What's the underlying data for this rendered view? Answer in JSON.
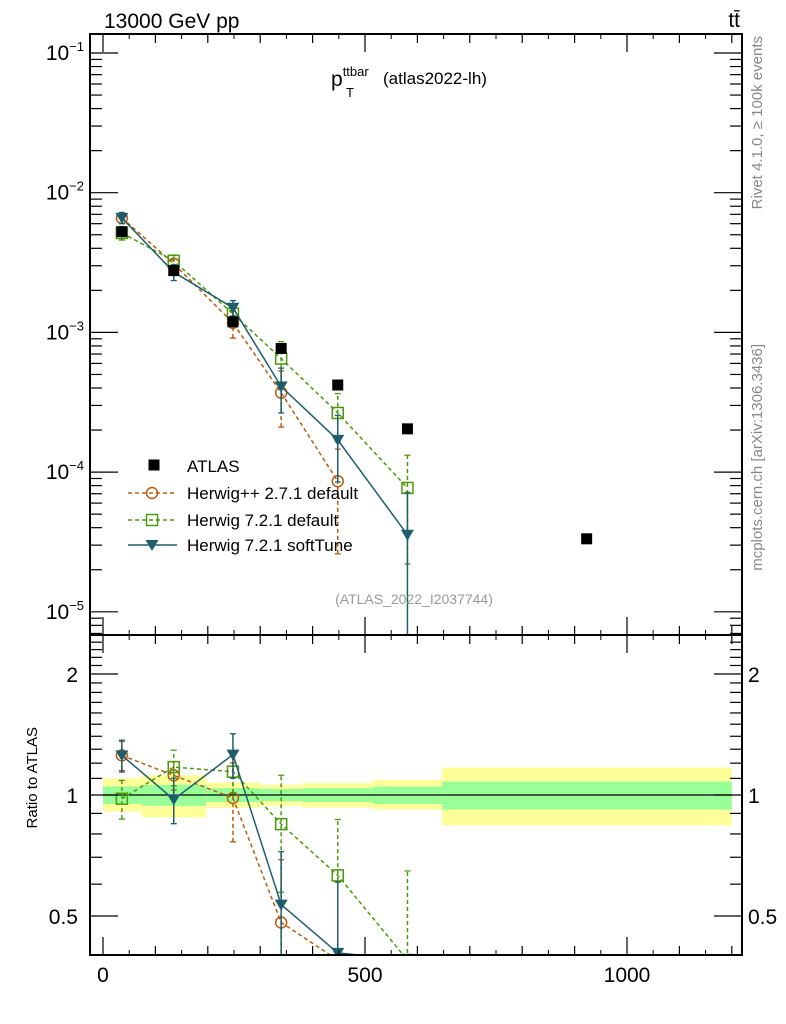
{
  "chart_data": {
    "type": "scatter",
    "header_left": "13000 GeV pp",
    "header_right": "tt̄",
    "title_main": "p",
    "title_sup": "ttbar",
    "title_sub": "T",
    "title_rest": "(atlas2022-lh)",
    "analysis_label": "(ATLAS_2022_I2037744)",
    "side_label_top": "Rivet 4.1.0, ≥ 100k events",
    "side_label_bottom": "mcplots.cern.ch [arXiv:1306.3436]",
    "ratio_ylabel": "Ratio to ATLAS",
    "xlim": [
      -23,
      1220
    ],
    "ylim": [
      7.1e-06,
      0.1345
    ],
    "yscale": "log",
    "ratio_ylim": [
      0.4,
      2.53
    ],
    "x_ticks": [
      {
        "v": 0,
        "label": "0"
      },
      {
        "v": 500,
        "label": "500"
      },
      {
        "v": 1000,
        "label": "1000"
      }
    ],
    "y_ticks": [
      {
        "exp": -1,
        "base": "10",
        "sup": "−1"
      },
      {
        "exp": -2,
        "base": "10",
        "sup": "−2"
      },
      {
        "exp": -3,
        "base": "10",
        "sup": "−3"
      },
      {
        "exp": -4,
        "base": "10",
        "sup": "−4"
      },
      {
        "exp": -5,
        "base": "10",
        "sup": "−5"
      }
    ],
    "ratio_ticks": [
      {
        "v": 0.5,
        "label": "0.5"
      },
      {
        "v": 1,
        "label": "1"
      },
      {
        "v": 2,
        "label": "2"
      }
    ],
    "bins": [
      0,
      73,
      197,
      300,
      380,
      515,
      647,
      1200
    ],
    "ratio_band_stat": [
      [
        0.95,
        1.05
      ],
      [
        0.94,
        1.06
      ],
      [
        0.96,
        1.04
      ],
      [
        0.965,
        1.035
      ],
      [
        0.96,
        1.04
      ],
      [
        0.95,
        1.05
      ],
      [
        0.92,
        1.08
      ]
    ],
    "ratio_band_total": [
      [
        0.91,
        1.1
      ],
      [
        0.88,
        1.12
      ],
      [
        0.93,
        1.074
      ],
      [
        0.94,
        1.06
      ],
      [
        0.93,
        1.07
      ],
      [
        0.92,
        1.09
      ],
      [
        0.84,
        1.17
      ]
    ],
    "data": {
      "name": "ATLAS",
      "color": "#000000",
      "x": [
        36,
        135,
        248,
        340,
        448,
        581,
        923
      ],
      "y": [
        0.00526,
        0.00277,
        0.00119,
        0.000768,
        0.00042,
        0.000204,
        3.33e-05
      ]
    },
    "series": [
      {
        "name": "Herwig++ 2.7.1 default",
        "color": "#b85c10",
        "marker": "circle",
        "dash": true,
        "x": [
          36,
          135,
          248,
          340,
          448
        ],
        "y": [
          0.0066,
          0.0031,
          0.00117,
          0.00037,
          8.6e-05
        ],
        "err": [
          0.00055,
          0.00025,
          0.00026,
          0.00016,
          6e-05
        ]
      },
      {
        "name": "Herwig 7.2.1 default",
        "color": "#4a9a0a",
        "marker": "square",
        "dash": true,
        "x": [
          36,
          135,
          248,
          340,
          448,
          581
        ],
        "y": [
          0.00515,
          0.00325,
          0.00136,
          0.00065,
          0.000265,
          7.7e-05
        ],
        "err": [
          0.00057,
          0.00033,
          0.00016,
          0.00021,
          0.0001,
          5.5e-05
        ]
      },
      {
        "name": "Herwig 7.2.1 softTune",
        "color": "#1e5d6c",
        "marker": "triangle",
        "dash": false,
        "x": [
          36,
          135,
          248,
          340,
          448,
          581
        ],
        "y": [
          0.0066,
          0.0027,
          0.0015,
          0.00041,
          0.00017,
          3.56e-05
        ],
        "err": [
          0.0006,
          0.00035,
          0.00019,
          0.000145,
          8.5e-05,
          3.6e-05
        ]
      }
    ]
  }
}
